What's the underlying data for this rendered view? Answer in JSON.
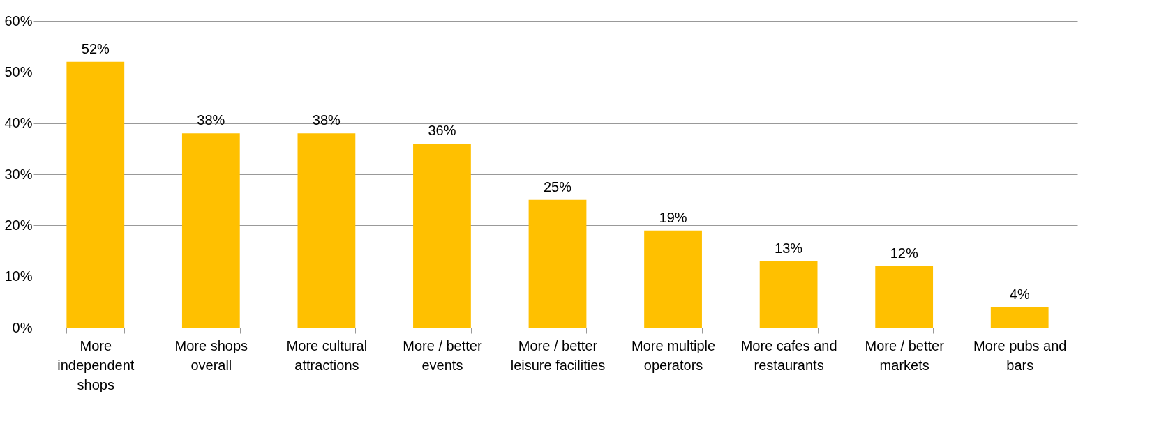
{
  "chart_data": {
    "type": "bar",
    "categories": [
      "More independent shops",
      "More shops overall",
      "More cultural attractions",
      "More / better events",
      "More / better leisure facilities",
      "More multiple operators",
      "More cafes and restaurants",
      "More / better markets",
      "More pubs and bars"
    ],
    "values": [
      52,
      38,
      38,
      36,
      25,
      19,
      13,
      12,
      4
    ],
    "color": "#ffc000",
    "ylim": [
      0,
      60
    ],
    "yticks": [
      {
        "value": 0,
        "label": "0%"
      },
      {
        "value": 10,
        "label": "10%"
      },
      {
        "value": 20,
        "label": "20%"
      },
      {
        "value": 30,
        "label": "30%"
      },
      {
        "value": 40,
        "label": "40%"
      },
      {
        "value": 50,
        "label": "50%"
      },
      {
        "value": 60,
        "label": "60%"
      }
    ],
    "value_labels": [
      "52%",
      "38%",
      "38%",
      "36%",
      "25%",
      "19%",
      "13%",
      "12%",
      "4%"
    ],
    "grid": "y"
  }
}
